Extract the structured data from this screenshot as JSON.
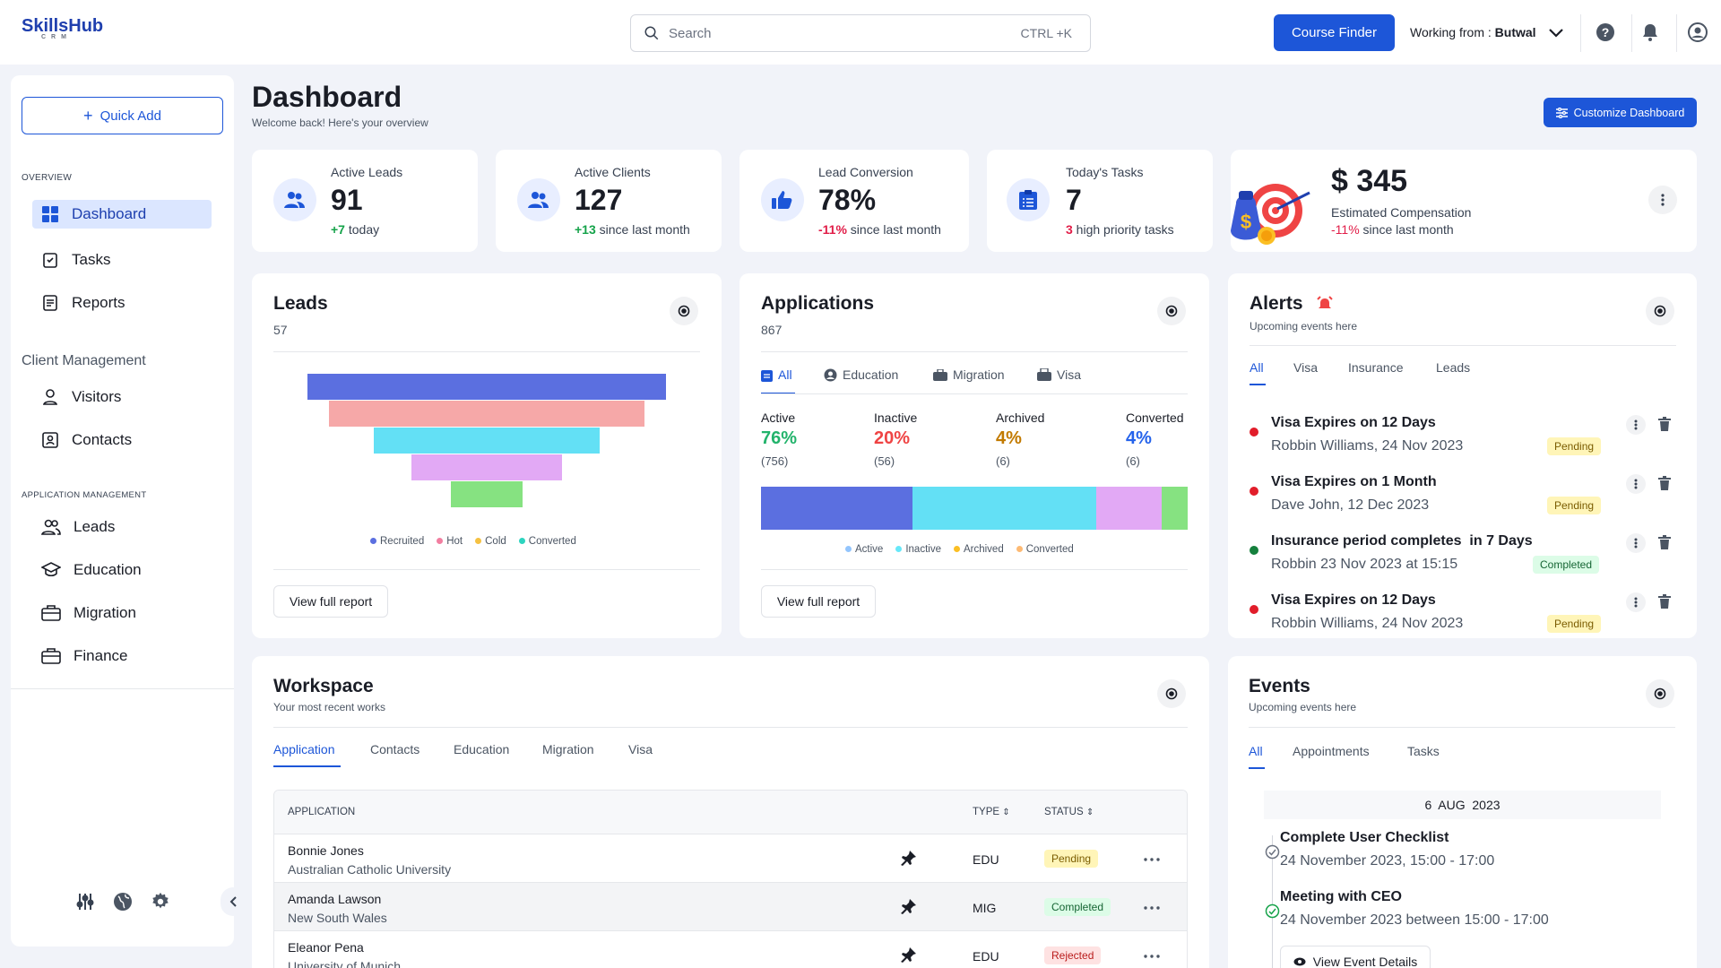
{
  "header": {
    "logo": "SkillsHub",
    "logo_sub": "CRM",
    "search_placeholder": "Search",
    "search_shortcut": "CTRL +K",
    "course_finder": "Course Finder",
    "working_from_label": "Working from : ",
    "working_from_value": "Butwal"
  },
  "sidebar": {
    "quick_add": "Quick Add",
    "section_overview": "OVERVIEW",
    "overview_items": [
      {
        "label": "Dashboard",
        "icon": "grid-icon"
      },
      {
        "label": "Tasks",
        "icon": "tasks-icon"
      },
      {
        "label": "Reports",
        "icon": "reports-icon"
      }
    ],
    "section_client": "Client Management",
    "client_items": [
      {
        "label": "Visitors",
        "icon": "user-icon"
      },
      {
        "label": "Contacts",
        "icon": "contacts-icon"
      }
    ],
    "section_app": "APPLICATION MANAGEMENT",
    "app_items": [
      {
        "label": "Leads",
        "icon": "users-icon"
      },
      {
        "label": "Education",
        "icon": "graduation-cap-icon"
      },
      {
        "label": "Migration",
        "icon": "briefcase-icon"
      },
      {
        "label": "Finance",
        "icon": "briefcase-icon"
      }
    ]
  },
  "page": {
    "title": "Dashboard",
    "subtitle": "Welcome back! Here's your overview",
    "customize": "Customize Dashboard"
  },
  "stats": [
    {
      "label": "Active Leads",
      "value": "91",
      "delta": "+7",
      "delta_text": " today",
      "tone": "green"
    },
    {
      "label": "Active Clients",
      "value": "127",
      "delta": "+13",
      "delta_text": " since last month",
      "tone": "green"
    },
    {
      "label": "Lead Conversion",
      "value": "78%",
      "delta": "-11%",
      "delta_text": " since last month",
      "tone": "red"
    },
    {
      "label": "Today's Tasks",
      "value": "7",
      "delta": "3",
      "delta_text": " high priority tasks",
      "tone": "red"
    }
  ],
  "compensation": {
    "value": "$ 345",
    "label": "Estimated Compensation",
    "delta": "-11%",
    "delta_text": " since last month"
  },
  "leads": {
    "title": "Leads",
    "count": "57",
    "view": "View full report",
    "funnel": [
      {
        "name": "Recruited",
        "color": "#5b6fe0",
        "value": 1.0
      },
      {
        "name": "Hot",
        "color": "#f6a8a8",
        "value": 0.88
      },
      {
        "name": "Cold",
        "color": "#63e0f5",
        "value": 0.63
      },
      {
        "name": "Converted",
        "color": "#e2a9f5",
        "value": 0.42
      },
      {
        "name": "",
        "color": "#86e281",
        "value": 0.2
      }
    ],
    "legend": [
      {
        "name": "Recruited",
        "color": "#5b6fe0"
      },
      {
        "name": "Hot",
        "color": "#f27ea0"
      },
      {
        "name": "Cold",
        "color": "#f5c142"
      },
      {
        "name": "Converted",
        "color": "#2dd4bf"
      }
    ]
  },
  "applications": {
    "title": "Applications",
    "count": "867",
    "view": "View full report",
    "tabs": [
      "All",
      "Education",
      "Migration",
      "Visa"
    ],
    "stats": [
      {
        "label": "Active",
        "pct": "76%",
        "n": "(756)",
        "color": "#22b36b"
      },
      {
        "label": "Inactive",
        "pct": "20%",
        "n": "(56)",
        "color": "#ef4444"
      },
      {
        "label": "Archived",
        "pct": "4%",
        "n": "(6)",
        "color": "#c27a00"
      },
      {
        "label": "Converted",
        "pct": "4%",
        "n": "(6)",
        "color": "#2563eb"
      }
    ],
    "bar": [
      {
        "color": "#5b6fe0",
        "value": 35.5
      },
      {
        "color": "#63e0f5",
        "value": 43
      },
      {
        "color": "#e2a9f5",
        "value": 15.5
      },
      {
        "color": "#86e281",
        "value": 6
      }
    ],
    "legend": [
      {
        "name": "Active",
        "color": "#93c5fd"
      },
      {
        "name": "Inactive",
        "color": "#67e8f9"
      },
      {
        "name": "Archived",
        "color": "#fbbf24"
      },
      {
        "name": "Converted",
        "color": "#fdba74"
      }
    ]
  },
  "alerts": {
    "title": "Alerts",
    "subtitle": "Upcoming events here",
    "tabs": [
      "All",
      "Visa",
      "Insurance",
      "Leads"
    ],
    "items": [
      {
        "title": "Visa Expires on 12 Days",
        "sub": "Robbin Williams, 24 Nov 2023",
        "badge": "Pending",
        "dot": "#e11d2a"
      },
      {
        "title": "Visa Expires on 1 Month",
        "sub": "Dave John, 12 Dec 2023",
        "badge": "Pending",
        "dot": "#e11d2a"
      },
      {
        "title": "Insurance period completes  in 7 Days",
        "sub": "Robbin 23 Nov 2023 at 15:15",
        "badge": "Completed",
        "dot": "#15803d"
      },
      {
        "title": "Visa Expires on 12 Days",
        "sub": "Robbin Williams, 24 Nov 2023",
        "badge": "Pending",
        "dot": "#e11d2a"
      }
    ]
  },
  "workspace": {
    "title": "Workspace",
    "subtitle": "Your most recent works",
    "tabs": [
      "Application",
      "Contacts",
      "Education",
      "Migration",
      "Visa"
    ],
    "cols": {
      "application": "APPLICATION",
      "type": "TYPE",
      "status": "STATUS"
    },
    "rows": [
      {
        "name": "Bonnie Jones",
        "sub": "Australian Catholic University",
        "type": "EDU",
        "status": "Pending"
      },
      {
        "name": "Amanda Lawson",
        "sub": "New South Wales",
        "type": "MIG",
        "status": "Completed"
      },
      {
        "name": "Eleanor Pena",
        "sub": "University of Munich",
        "type": "EDU",
        "status": "Rejected"
      }
    ]
  },
  "events": {
    "title": "Events",
    "subtitle": "Upcoming events here",
    "tabs": [
      "All",
      "Appointments",
      "Tasks"
    ],
    "date": "6  AUG  2023",
    "items": [
      {
        "title": "Complete User Checklist",
        "sub": "24 November 2023, 15:00 - 17:00"
      },
      {
        "title": "Meeting with CEO",
        "sub": "24 November 2023 between 15:00 - 17:00"
      }
    ],
    "view": "View Event Details"
  }
}
